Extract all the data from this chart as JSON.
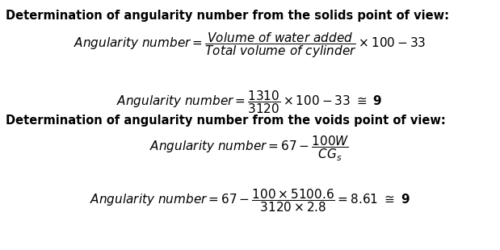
{
  "bg_color": "#ffffff",
  "heading1": "Determination of angularity number from the solids point of view:",
  "heading2": "Determination of angularity number from the voids point of view:",
  "heading_fontsize": 10.5,
  "formula_fontsize": 11,
  "fig_width": 6.19,
  "fig_height": 3.1,
  "dpi": 100
}
